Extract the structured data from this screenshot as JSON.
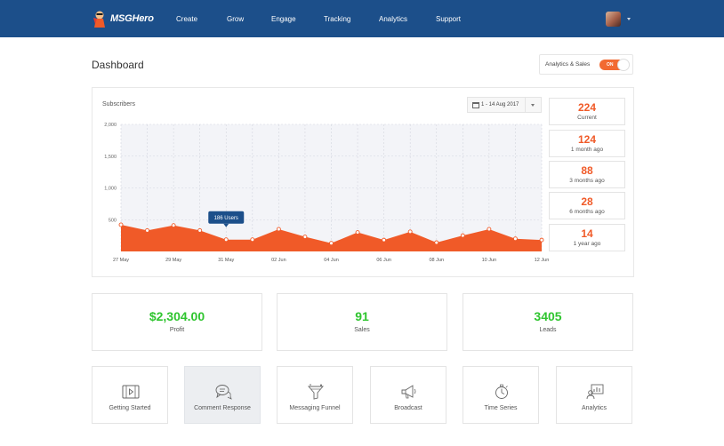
{
  "app": {
    "brand": "MSGHero"
  },
  "nav": {
    "items": [
      "Create",
      "Grow",
      "Engage",
      "Tracking",
      "Analytics",
      "Support"
    ]
  },
  "page": {
    "title": "Dashboard"
  },
  "toggle": {
    "label": "Analytics & Sales",
    "state": "ON",
    "color": "#f26a32"
  },
  "subscribers": {
    "title": "Subscribers",
    "date_range": "1 - 14 Aug 2017",
    "tooltip": "186 Users",
    "stats": [
      {
        "value": "224",
        "label": "Current"
      },
      {
        "value": "124",
        "label": "1 month ago"
      },
      {
        "value": "88",
        "label": "3 months ago"
      },
      {
        "value": "28",
        "label": "6 months ago"
      },
      {
        "value": "14",
        "label": "1 year ago"
      }
    ]
  },
  "chart_data": {
    "type": "area",
    "title": "Subscribers",
    "x": [
      "27 May",
      "28 May",
      "29 May",
      "30 May",
      "31 May",
      "01 Jun",
      "02 Jun",
      "03 Jun",
      "04 Jun",
      "05 Jun",
      "06 Jun",
      "07 Jun",
      "08 Jun",
      "09 Jun",
      "10 Jun",
      "11 Jun",
      "12 Jun"
    ],
    "x_tick_labels": [
      "27 May",
      "29 May",
      "31 May",
      "02 Jun",
      "04 Jun",
      "06 Jun",
      "08 Jun",
      "10 Jun",
      "12 Jun"
    ],
    "values": [
      420,
      330,
      410,
      330,
      186,
      186,
      350,
      230,
      130,
      300,
      180,
      310,
      140,
      250,
      350,
      200,
      180
    ],
    "ylim": [
      0,
      2000
    ],
    "y_ticks": [
      "500",
      "1,000",
      "1,500",
      "2,000"
    ],
    "y_tick_values": [
      500,
      1000,
      1500,
      2000
    ],
    "grid": true,
    "fill_color": "#f05a28"
  },
  "kpis": [
    {
      "value": "$2,304.00",
      "label": "Profit"
    },
    {
      "value": "91",
      "label": "Sales"
    },
    {
      "value": "3405",
      "label": "Leads"
    }
  ],
  "tiles": [
    {
      "label": "Getting Started",
      "icon": "video-icon"
    },
    {
      "label": "Comment Response",
      "icon": "chat-bubbles-icon"
    },
    {
      "label": "Messaging Funnel",
      "icon": "funnel-icon"
    },
    {
      "label": "Broadcast",
      "icon": "megaphone-icon"
    },
    {
      "label": "Time Series",
      "icon": "stopwatch-icon"
    },
    {
      "label": "Analytics",
      "icon": "analytics-user-icon"
    }
  ]
}
